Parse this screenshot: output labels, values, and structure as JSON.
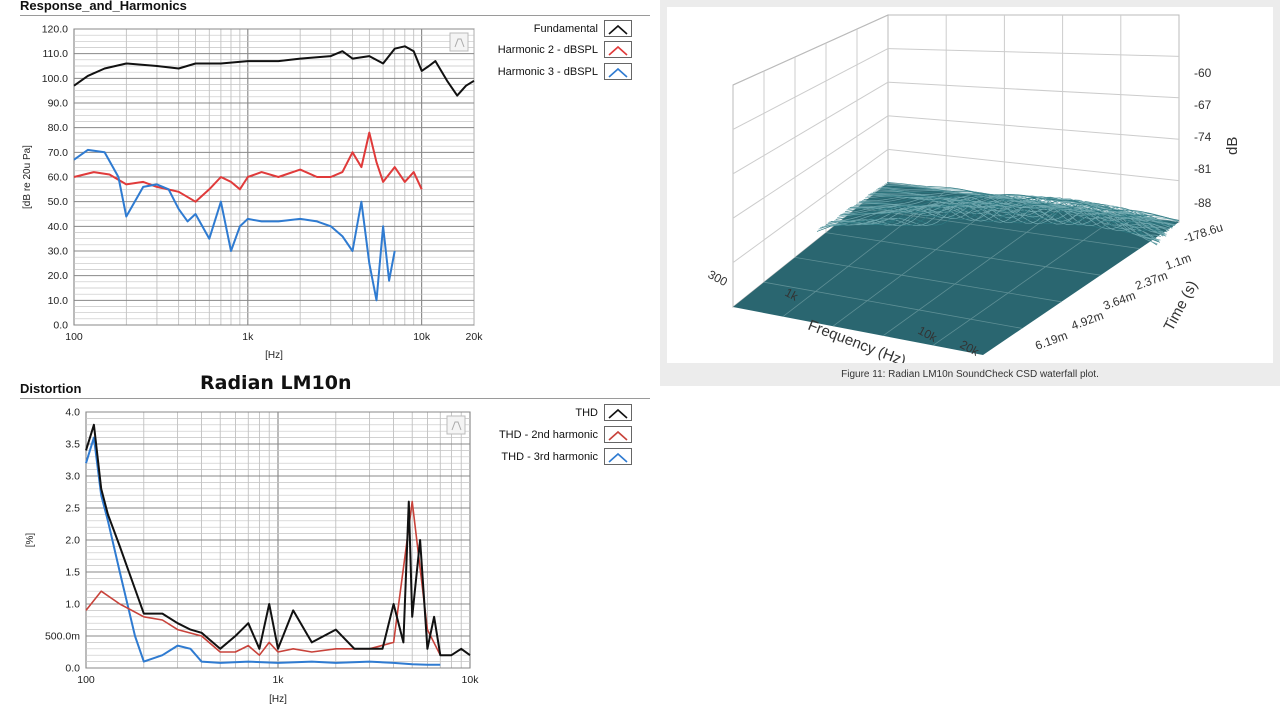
{
  "main_title": "Radian LM10n",
  "response": {
    "section_title": "Response_and_Harmonics",
    "legend": [
      "Fundamental",
      "Harmonic 2 - dBSPL",
      "Harmonic 3 - dBSPL"
    ],
    "colors": {
      "fundamental": "#111111",
      "h2": "#e03a3a",
      "h3": "#2f7bd1"
    },
    "ylabel": "[dB re 20u Pa]",
    "xlabel": "[Hz]",
    "y_ticks": [
      "0.0",
      "10.0",
      "20.0",
      "30.0",
      "40.0",
      "50.0",
      "60.0",
      "70.0",
      "80.0",
      "90.0",
      "100.0",
      "110.0",
      "120.0"
    ],
    "x_ticks": [
      "100",
      "1k",
      "10k",
      "20k"
    ]
  },
  "distortion": {
    "section_title": "Distortion",
    "legend": [
      "THD",
      "THD - 2nd harmonic",
      "THD - 3rd harmonic"
    ],
    "colors": {
      "thd": "#111111",
      "h2": "#c8423a",
      "h3": "#2f7bd1"
    },
    "ylabel": "[%]",
    "xlabel": "[Hz]",
    "y_ticks": [
      "0.0",
      "500.0m",
      "1.0",
      "1.5",
      "2.0",
      "2.5",
      "3.0",
      "3.5",
      "4.0"
    ],
    "x_ticks": [
      "100",
      "1k",
      "10k"
    ]
  },
  "waterfall": {
    "caption": "Figure 11: Radian LM10n SoundCheck CSD waterfall plot.",
    "freq_ticks": [
      "300",
      "1k",
      "10k",
      "20k"
    ],
    "freq_label": "Frequency (Hz)",
    "time_ticks": [
      "1.1m",
      "2.37m",
      "3.64m",
      "4.92m",
      "6.19m"
    ],
    "time_label": "Time (s)",
    "db_ticks": [
      "-60",
      "-67",
      "-74",
      "-81",
      "-88",
      "-178.6u"
    ],
    "db_label": "dB",
    "colors": {
      "floor": "#2a6670",
      "lines": "#4a8f98"
    }
  },
  "chart_data": [
    {
      "type": "line",
      "title": "Response_and_Harmonics",
      "xlabel": "[Hz]",
      "ylabel": "[dB re 20u Pa]",
      "xscale": "log",
      "xlim": [
        100,
        20000
      ],
      "ylim": [
        0,
        120
      ],
      "grid": true,
      "legend": "top-right, outside plot",
      "series": [
        {
          "name": "Fundamental",
          "x": [
            100,
            120,
            150,
            200,
            300,
            400,
            500,
            700,
            1000,
            1500,
            2000,
            3000,
            3500,
            4000,
            5000,
            6000,
            7000,
            8000,
            9000,
            10000,
            11000,
            12000,
            14000,
            16000,
            18000,
            20000
          ],
          "y": [
            97,
            101,
            104,
            106,
            105,
            104,
            106,
            106,
            107,
            107,
            108,
            109,
            111,
            108,
            109,
            106,
            112,
            113,
            111,
            103,
            105,
            107,
            99,
            93,
            97,
            99
          ]
        },
        {
          "name": "Harmonic 2 - dBSPL",
          "x": [
            100,
            130,
            160,
            200,
            250,
            300,
            400,
            500,
            600,
            700,
            800,
            900,
            1000,
            1200,
            1500,
            2000,
            2500,
            3000,
            3500,
            4000,
            4500,
            5000,
            5500,
            6000,
            7000,
            8000,
            9000,
            10000
          ],
          "y": [
            60,
            62,
            61,
            57,
            58,
            56,
            54,
            50,
            55,
            60,
            58,
            55,
            60,
            62,
            60,
            63,
            60,
            60,
            62,
            70,
            64,
            78,
            66,
            58,
            64,
            58,
            62,
            55
          ]
        },
        {
          "name": "Harmonic 3 - dBSPL",
          "x": [
            100,
            120,
            150,
            180,
            200,
            250,
            300,
            350,
            400,
            450,
            500,
            600,
            700,
            800,
            900,
            1000,
            1200,
            1500,
            2000,
            2500,
            3000,
            3500,
            4000,
            4500,
            5000,
            5500,
            6000,
            6500,
            7000
          ],
          "y": [
            67,
            71,
            70,
            60,
            44,
            56,
            57,
            55,
            47,
            42,
            45,
            35,
            50,
            30,
            40,
            43,
            42,
            42,
            43,
            42,
            40,
            36,
            30,
            50,
            25,
            10,
            40,
            18,
            30
          ]
        }
      ]
    },
    {
      "type": "line",
      "title": "Distortion",
      "xlabel": "[Hz]",
      "ylabel": "[%]",
      "xscale": "log",
      "xlim": [
        100,
        10000
      ],
      "ylim": [
        0,
        4
      ],
      "grid": true,
      "legend": "top-right, outside plot",
      "series": [
        {
          "name": "THD",
          "x": [
            100,
            110,
            120,
            130,
            150,
            200,
            250,
            300,
            350,
            400,
            500,
            600,
            700,
            800,
            900,
            1000,
            1200,
            1500,
            2000,
            2500,
            3000,
            3500,
            4000,
            4500,
            4800,
            5000,
            5500,
            6000,
            6500,
            7000,
            8000,
            9000,
            10000
          ],
          "y": [
            3.4,
            3.8,
            2.8,
            2.4,
            1.9,
            0.85,
            0.85,
            0.7,
            0.6,
            0.55,
            0.3,
            0.5,
            0.7,
            0.3,
            1.0,
            0.3,
            0.9,
            0.4,
            0.6,
            0.3,
            0.3,
            0.3,
            1.0,
            0.4,
            2.6,
            0.8,
            2.0,
            0.3,
            0.8,
            0.2,
            0.2,
            0.3,
            0.2
          ]
        },
        {
          "name": "THD - 2nd harmonic",
          "x": [
            100,
            120,
            150,
            200,
            250,
            300,
            400,
            500,
            600,
            700,
            800,
            900,
            1000,
            1200,
            1500,
            2000,
            3000,
            4000,
            5000,
            6000,
            7000
          ],
          "y": [
            0.9,
            1.2,
            1.0,
            0.8,
            0.75,
            0.6,
            0.5,
            0.25,
            0.25,
            0.35,
            0.2,
            0.4,
            0.25,
            0.3,
            0.25,
            0.3,
            0.3,
            0.4,
            2.6,
            0.6,
            0.2
          ]
        },
        {
          "name": "THD - 3rd harmonic",
          "x": [
            100,
            110,
            120,
            130,
            150,
            180,
            200,
            250,
            300,
            350,
            400,
            500,
            700,
            1000,
            1500,
            2000,
            3000,
            4000,
            5000,
            6000,
            7000
          ],
          "y": [
            3.2,
            3.6,
            2.7,
            2.3,
            1.5,
            0.5,
            0.1,
            0.2,
            0.35,
            0.3,
            0.1,
            0.08,
            0.1,
            0.08,
            0.1,
            0.08,
            0.1,
            0.08,
            0.06,
            0.05,
            0.05
          ]
        }
      ]
    }
  ]
}
